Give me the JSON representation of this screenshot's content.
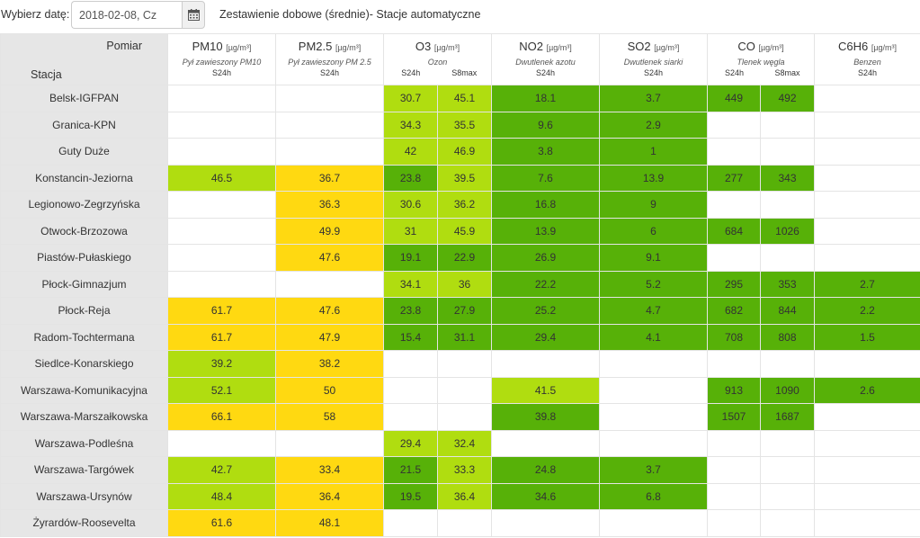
{
  "header": {
    "date_label": "Wybierz datę:",
    "date_value": "2018-02-08, Cz",
    "calendar_icon": "calendar-icon",
    "title": "Zestawienie dobowe (średnie)- Stacje automatyczne"
  },
  "table": {
    "corner_top": "Pomiar",
    "corner_bottom": "Stacja",
    "pollutants": [
      {
        "name": "PM10",
        "unit": "µg/m³",
        "desc": "Pył zawieszony PM10",
        "avgs": [
          "S24h"
        ]
      },
      {
        "name": "PM2.5",
        "unit": "µg/m³",
        "desc": "Pył zawieszony PM 2.5",
        "avgs": [
          "S24h"
        ]
      },
      {
        "name": "O3",
        "unit": "µg/m³",
        "desc": "Ozon",
        "avgs": [
          "S24h",
          "S8max"
        ]
      },
      {
        "name": "NO2",
        "unit": "µg/m³",
        "desc": "Dwutlenek azotu",
        "avgs": [
          "S24h"
        ]
      },
      {
        "name": "SO2",
        "unit": "µg/m³",
        "desc": "Dwutlenek siarki",
        "avgs": [
          "S24h"
        ]
      },
      {
        "name": "CO",
        "unit": "µg/m³",
        "desc": "Tlenek węgla",
        "avgs": [
          "S24h",
          "S8max"
        ]
      },
      {
        "name": "C6H6",
        "unit": "µg/m³",
        "desc": "Benzen",
        "avgs": [
          "S24h"
        ]
      }
    ],
    "level_colors": {
      "good": "#57b108",
      "very_good": "#b0dd10",
      "moderate": "#ffd911",
      "empty": "#ffffff",
      "station_bg": "#e6e6e6"
    },
    "rows": [
      {
        "station": "Belsk-IGFPAN",
        "pm10": "",
        "pm25": "",
        "o3_24": "30.7",
        "o3_8": "45.1",
        "no2": "18.1",
        "so2": "3.7",
        "co_24": "449",
        "co_8": "492",
        "c6h6": "",
        "levels": [
          "e",
          "e",
          "lg",
          "lg",
          "g",
          "g",
          "g",
          "g",
          "e"
        ]
      },
      {
        "station": "Granica-KPN",
        "pm10": "",
        "pm25": "",
        "o3_24": "34.3",
        "o3_8": "35.5",
        "no2": "9.6",
        "so2": "2.9",
        "co_24": "",
        "co_8": "",
        "c6h6": "",
        "levels": [
          "e",
          "e",
          "lg",
          "lg",
          "g",
          "g",
          "e",
          "e",
          "e"
        ]
      },
      {
        "station": "Guty Duże",
        "pm10": "",
        "pm25": "",
        "o3_24": "42",
        "o3_8": "46.9",
        "no2": "3.8",
        "so2": "1",
        "co_24": "",
        "co_8": "",
        "c6h6": "",
        "levels": [
          "e",
          "e",
          "lg",
          "lg",
          "g",
          "g",
          "e",
          "e",
          "e"
        ]
      },
      {
        "station": "Konstancin-Jeziorna",
        "pm10": "46.5",
        "pm25": "36.7",
        "o3_24": "23.8",
        "o3_8": "39.5",
        "no2": "7.6",
        "so2": "13.9",
        "co_24": "277",
        "co_8": "343",
        "c6h6": "",
        "levels": [
          "lg",
          "y",
          "g",
          "lg",
          "g",
          "g",
          "g",
          "g",
          "e"
        ]
      },
      {
        "station": "Legionowo-Zegrzyńska",
        "pm10": "",
        "pm25": "36.3",
        "o3_24": "30.6",
        "o3_8": "36.2",
        "no2": "16.8",
        "so2": "9",
        "co_24": "",
        "co_8": "",
        "c6h6": "",
        "levels": [
          "e",
          "y",
          "lg",
          "lg",
          "g",
          "g",
          "e",
          "e",
          "e"
        ]
      },
      {
        "station": "Otwock-Brzozowa",
        "pm10": "",
        "pm25": "49.9",
        "o3_24": "31",
        "o3_8": "45.9",
        "no2": "13.9",
        "so2": "6",
        "co_24": "684",
        "co_8": "1026",
        "c6h6": "",
        "levels": [
          "e",
          "y",
          "lg",
          "lg",
          "g",
          "g",
          "g",
          "g",
          "e"
        ]
      },
      {
        "station": "Piastów-Pułaskiego",
        "pm10": "",
        "pm25": "47.6",
        "o3_24": "19.1",
        "o3_8": "22.9",
        "no2": "26.9",
        "so2": "9.1",
        "co_24": "",
        "co_8": "",
        "c6h6": "",
        "levels": [
          "e",
          "y",
          "g",
          "g",
          "g",
          "g",
          "e",
          "e",
          "e"
        ]
      },
      {
        "station": "Płock-Gimnazjum",
        "pm10": "",
        "pm25": "",
        "o3_24": "34.1",
        "o3_8": "36",
        "no2": "22.2",
        "so2": "5.2",
        "co_24": "295",
        "co_8": "353",
        "c6h6": "2.7",
        "levels": [
          "e",
          "e",
          "lg",
          "lg",
          "g",
          "g",
          "g",
          "g",
          "g"
        ]
      },
      {
        "station": "Płock-Reja",
        "pm10": "61.7",
        "pm25": "47.6",
        "o3_24": "23.8",
        "o3_8": "27.9",
        "no2": "25.2",
        "so2": "4.7",
        "co_24": "682",
        "co_8": "844",
        "c6h6": "2.2",
        "levels": [
          "y",
          "y",
          "g",
          "g",
          "g",
          "g",
          "g",
          "g",
          "g"
        ]
      },
      {
        "station": "Radom-Tochtermana",
        "pm10": "61.7",
        "pm25": "47.9",
        "o3_24": "15.4",
        "o3_8": "31.1",
        "no2": "29.4",
        "so2": "4.1",
        "co_24": "708",
        "co_8": "808",
        "c6h6": "1.5",
        "levels": [
          "y",
          "y",
          "g",
          "g",
          "g",
          "g",
          "g",
          "g",
          "g"
        ]
      },
      {
        "station": "Siedlce-Konarskiego",
        "pm10": "39.2",
        "pm25": "38.2",
        "o3_24": "",
        "o3_8": "",
        "no2": "",
        "so2": "",
        "co_24": "",
        "co_8": "",
        "c6h6": "",
        "levels": [
          "lg",
          "y",
          "e",
          "e",
          "e",
          "e",
          "e",
          "e",
          "e"
        ]
      },
      {
        "station": "Warszawa-Komunikacyjna",
        "pm10": "52.1",
        "pm25": "50",
        "o3_24": "",
        "o3_8": "",
        "no2": "41.5",
        "so2": "",
        "co_24": "913",
        "co_8": "1090",
        "c6h6": "2.6",
        "levels": [
          "lg",
          "y",
          "e",
          "e",
          "lg",
          "e",
          "g",
          "g",
          "g"
        ]
      },
      {
        "station": "Warszawa-Marszałkowska",
        "pm10": "66.1",
        "pm25": "58",
        "o3_24": "",
        "o3_8": "",
        "no2": "39.8",
        "so2": "",
        "co_24": "1507",
        "co_8": "1687",
        "c6h6": "",
        "levels": [
          "y",
          "y",
          "e",
          "e",
          "g",
          "e",
          "g",
          "g",
          "e"
        ]
      },
      {
        "station": "Warszawa-Podleśna",
        "pm10": "",
        "pm25": "",
        "o3_24": "29.4",
        "o3_8": "32.4",
        "no2": "",
        "so2": "",
        "co_24": "",
        "co_8": "",
        "c6h6": "",
        "levels": [
          "e",
          "e",
          "lg",
          "lg",
          "e",
          "e",
          "e",
          "e",
          "e"
        ]
      },
      {
        "station": "Warszawa-Targówek",
        "pm10": "42.7",
        "pm25": "33.4",
        "o3_24": "21.5",
        "o3_8": "33.3",
        "no2": "24.8",
        "so2": "3.7",
        "co_24": "",
        "co_8": "",
        "c6h6": "",
        "levels": [
          "lg",
          "y",
          "g",
          "lg",
          "g",
          "g",
          "e",
          "e",
          "e"
        ]
      },
      {
        "station": "Warszawa-Ursynów",
        "pm10": "48.4",
        "pm25": "36.4",
        "o3_24": "19.5",
        "o3_8": "36.4",
        "no2": "34.6",
        "so2": "6.8",
        "co_24": "",
        "co_8": "",
        "c6h6": "",
        "levels": [
          "lg",
          "y",
          "g",
          "lg",
          "g",
          "g",
          "e",
          "e",
          "e"
        ]
      },
      {
        "station": "Żyrardów-Roosevelta",
        "pm10": "61.6",
        "pm25": "48.1",
        "o3_24": "",
        "o3_8": "",
        "no2": "",
        "so2": "",
        "co_24": "",
        "co_8": "",
        "c6h6": "",
        "levels": [
          "y",
          "y",
          "e",
          "e",
          "e",
          "e",
          "e",
          "e",
          "e"
        ]
      }
    ]
  }
}
